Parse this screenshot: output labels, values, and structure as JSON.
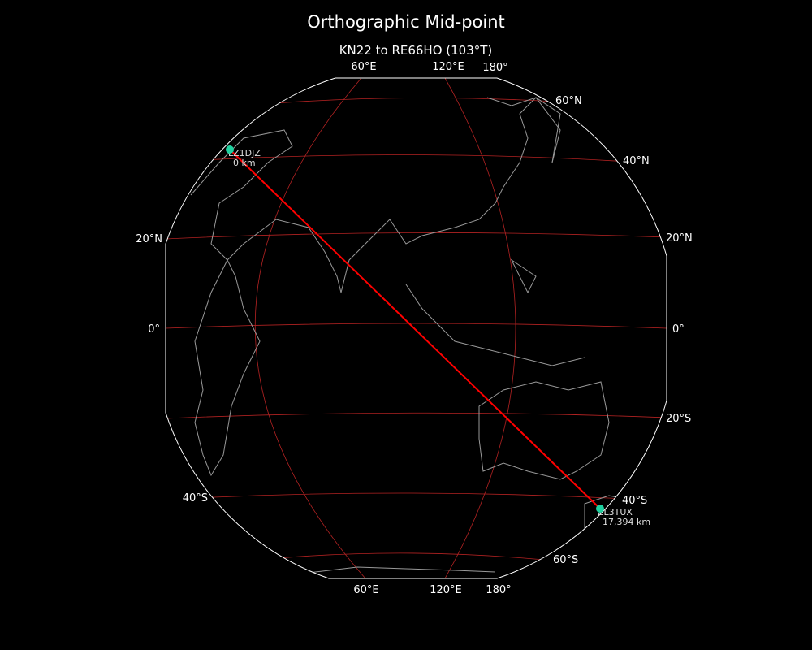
{
  "title": "Orthographic Mid-point",
  "subtitle": "KN22 to RE66HO (103°T)",
  "colors": {
    "background": "#000000",
    "grid": "#b22222",
    "path": "#ff0000",
    "marker": "#1fd1a0",
    "coast": "#999999",
    "border": "#ffffff"
  },
  "lon_labels_top": [
    "60°E",
    "120°E",
    "180°"
  ],
  "lon_labels_bottom": [
    "60°E",
    "120°E",
    "180°"
  ],
  "lat_labels_left": [
    "20°N",
    "0°",
    "40°S"
  ],
  "lat_labels_right": [
    "60°N",
    "40°N",
    "20°N",
    "0°",
    "20°S",
    "40°S",
    "60°S"
  ],
  "stations": [
    {
      "call": "LZ1DJZ",
      "distance": "0 km"
    },
    {
      "call": "ZL3TUX",
      "distance": "17,394 km"
    }
  ]
}
